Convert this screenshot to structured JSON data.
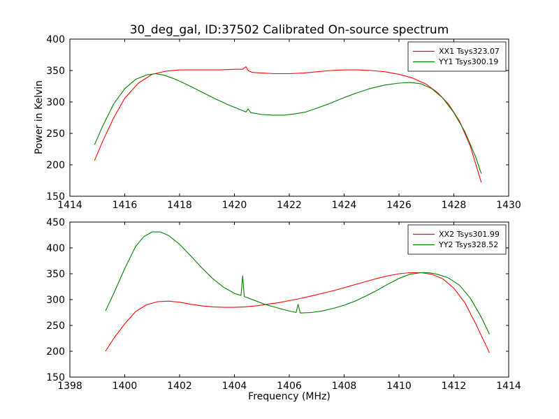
{
  "figure": {
    "background": "#ffffff",
    "axes_color": "#000000"
  },
  "chart_data": [
    {
      "type": "line",
      "title": "30_deg_gal, ID:37502 Calibrated On-source spectrum",
      "ylabel": "Power in Kelvin",
      "xlim": [
        1414,
        1430
      ],
      "ylim": [
        150,
        400
      ],
      "xticks": [
        1414,
        1416,
        1418,
        1420,
        1422,
        1424,
        1426,
        1428,
        1430
      ],
      "yticks": [
        150,
        200,
        250,
        300,
        350,
        400
      ],
      "grid": false,
      "legend_position": "top-right",
      "series": [
        {
          "name": "XX1 Tsys323.07",
          "color": "#ff0000",
          "x": [
            1414.9,
            1415.2,
            1415.6,
            1416.0,
            1416.5,
            1417.0,
            1417.5,
            1418.0,
            1418.5,
            1419.0,
            1419.5,
            1420.0,
            1420.3,
            1420.42,
            1420.5,
            1420.65,
            1421.0,
            1421.5,
            1422.0,
            1422.5,
            1423.0,
            1423.5,
            1424.0,
            1424.5,
            1425.0,
            1425.5,
            1426.0,
            1426.5,
            1427.0,
            1427.4,
            1427.8,
            1428.2,
            1428.6,
            1429.0
          ],
          "y": [
            207,
            238,
            275,
            306,
            330,
            344,
            349,
            351,
            351,
            351,
            351,
            352,
            352,
            356,
            350,
            347,
            346,
            345,
            345,
            346,
            348,
            350,
            351,
            351,
            350,
            348,
            344,
            338,
            328,
            315,
            297,
            270,
            230,
            172
          ]
        },
        {
          "name": "YY1 Tsys300.19",
          "color": "#008000",
          "x": [
            1414.9,
            1415.2,
            1415.6,
            1416.0,
            1416.4,
            1416.8,
            1417.1,
            1417.4,
            1417.8,
            1418.3,
            1418.8,
            1419.3,
            1419.8,
            1420.2,
            1420.42,
            1420.5,
            1420.6,
            1421.0,
            1421.4,
            1421.8,
            1422.2,
            1422.6,
            1423.0,
            1423.5,
            1424.0,
            1424.5,
            1425.0,
            1425.5,
            1426.0,
            1426.4,
            1426.8,
            1427.2,
            1427.6,
            1428.0,
            1428.4,
            1428.8,
            1429.0
          ],
          "y": [
            232,
            262,
            297,
            321,
            336,
            343,
            345,
            343,
            337,
            327,
            316,
            305,
            295,
            288,
            284,
            289,
            283,
            280,
            279,
            279,
            281,
            284,
            290,
            298,
            307,
            315,
            322,
            327,
            330,
            331,
            329,
            321,
            306,
            283,
            253,
            212,
            186
          ]
        }
      ]
    },
    {
      "type": "line",
      "xlabel": "Frequency (MHz)",
      "xlim": [
        1398,
        1414
      ],
      "ylim": [
        150,
        450
      ],
      "xticks": [
        1398,
        1400,
        1402,
        1404,
        1406,
        1408,
        1410,
        1412,
        1414
      ],
      "yticks": [
        150,
        200,
        250,
        300,
        350,
        400,
        450
      ],
      "grid": false,
      "legend_position": "top-right",
      "series": [
        {
          "name": "XX2 Tsys301.99",
          "color": "#ff0000",
          "x": [
            1399.3,
            1399.6,
            1400.0,
            1400.4,
            1400.8,
            1401.2,
            1401.6,
            1402.0,
            1402.4,
            1402.8,
            1403.2,
            1403.6,
            1404.0,
            1404.4,
            1404.8,
            1405.2,
            1405.6,
            1406.0,
            1406.4,
            1406.8,
            1407.2,
            1407.6,
            1408.0,
            1408.4,
            1408.8,
            1409.2,
            1409.6,
            1410.0,
            1410.4,
            1410.8,
            1411.2,
            1411.6,
            1412.0,
            1412.4,
            1412.8,
            1413.3
          ],
          "y": [
            200,
            225,
            253,
            277,
            290,
            296,
            297,
            295,
            291,
            288,
            286,
            285,
            285,
            286,
            288,
            291,
            294,
            298,
            302,
            307,
            312,
            317,
            323,
            329,
            335,
            341,
            346,
            350,
            352,
            352,
            349,
            340,
            322,
            294,
            253,
            197
          ]
        },
        {
          "name": "YY2 Tsys328.52",
          "color": "#008000",
          "x": [
            1399.3,
            1399.6,
            1400.0,
            1400.4,
            1400.7,
            1401.0,
            1401.3,
            1401.6,
            1402.0,
            1402.4,
            1402.8,
            1403.2,
            1403.6,
            1404.0,
            1404.24,
            1404.3,
            1404.36,
            1404.7,
            1405.1,
            1405.5,
            1405.9,
            1406.25,
            1406.32,
            1406.4,
            1406.8,
            1407.2,
            1407.6,
            1408.0,
            1408.4,
            1408.8,
            1409.2,
            1409.6,
            1410.0,
            1410.4,
            1410.8,
            1411.1,
            1411.4,
            1411.8,
            1412.2,
            1412.6,
            1413.0,
            1413.3
          ],
          "y": [
            278,
            312,
            360,
            403,
            422,
            431,
            431,
            424,
            407,
            385,
            362,
            341,
            324,
            312,
            308,
            346,
            306,
            299,
            291,
            285,
            279,
            275,
            291,
            274,
            275,
            278,
            283,
            289,
            297,
            307,
            318,
            330,
            341,
            349,
            352,
            352,
            349,
            342,
            328,
            303,
            266,
            233
          ]
        }
      ]
    }
  ]
}
